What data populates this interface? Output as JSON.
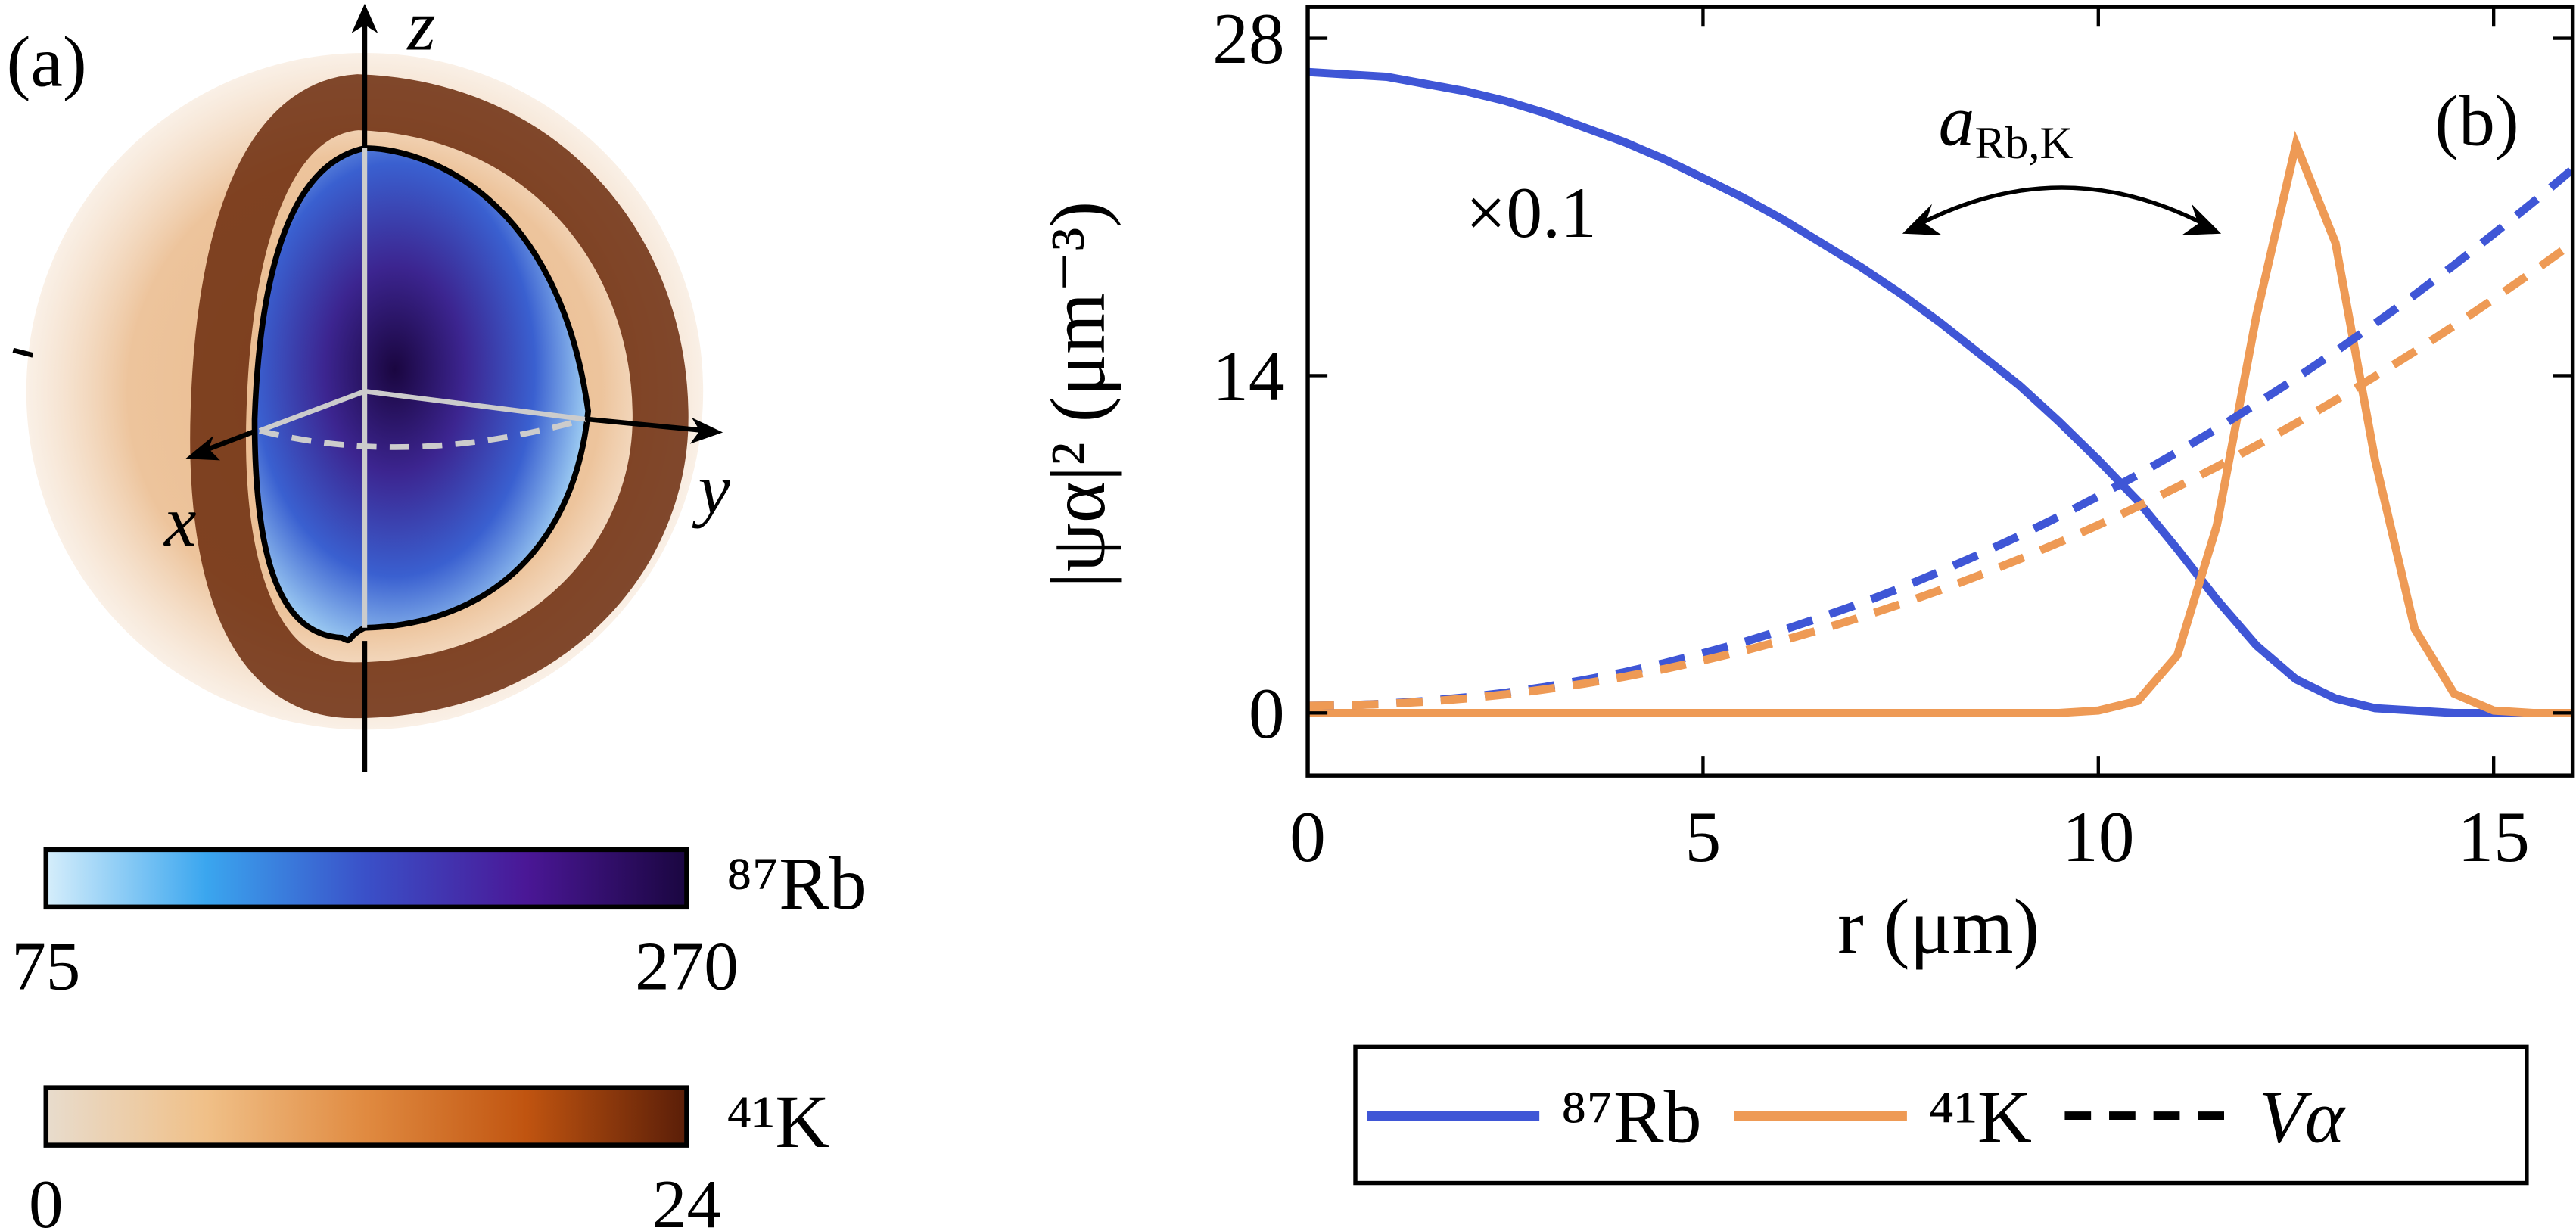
{
  "chart_data": [
    {
      "type": "image",
      "label": "(a)",
      "axis_labels": {
        "x": "x",
        "y": "y",
        "z": "z"
      },
      "colorbars": [
        {
          "label": "⁸⁷Rb",
          "lim": [
            75,
            270
          ],
          "ticks": [
            75,
            270
          ],
          "colors": [
            "#d6eefb",
            "#3aa6ef",
            "#3a50c8",
            "#4a1796",
            "#1a0640"
          ]
        },
        {
          "label": "⁴¹K",
          "lim": [
            0,
            24
          ],
          "ticks": [
            0,
            24
          ],
          "colors": [
            "#e8dccd",
            "#f0c088",
            "#e08a40",
            "#c05410",
            "#5a1e08"
          ]
        }
      ]
    },
    {
      "type": "line",
      "label": "(b)",
      "x_label": "r (μm)",
      "y_label": "|ψα|² (μm⁻³)",
      "annotations": {
        "scale": "×0.1",
        "coupling_main": "a",
        "coupling_sub": "Rb,K"
      },
      "xlim": [
        0,
        16
      ],
      "ylim": [
        -2.6,
        29.3
      ],
      "xticks": [
        0,
        5,
        10,
        15
      ],
      "yticks": [
        0,
        14,
        28
      ],
      "grid": false,
      "potential_label": "Vα",
      "x": [
        0,
        0.5,
        1,
        1.5,
        2,
        2.5,
        3,
        3.5,
        4,
        4.5,
        5,
        5.5,
        6,
        6.5,
        7,
        7.5,
        8,
        8.5,
        9,
        9.5,
        10,
        10.5,
        11,
        11.5,
        12,
        12.5,
        13,
        13.5,
        14,
        14.5,
        15,
        15.5,
        16
      ],
      "series": [
        {
          "name": "⁸⁷Rb",
          "color": "#3f56d6",
          "dashed": false,
          "values": [
            26.6,
            26.5,
            26.4,
            26.1,
            25.8,
            25.4,
            24.9,
            24.3,
            23.7,
            23.0,
            22.2,
            21.4,
            20.5,
            19.5,
            18.5,
            17.4,
            16.2,
            14.9,
            13.6,
            12.1,
            10.5,
            8.8,
            6.8,
            4.7,
            2.8,
            1.4,
            0.6,
            0.2,
            0.1,
            0,
            0,
            0,
            0
          ]
        },
        {
          "name": "⁴¹K",
          "color": "#ee9a55",
          "dashed": false,
          "values": [
            0,
            0,
            0,
            0,
            0,
            0,
            0,
            0,
            0,
            0,
            0,
            0,
            0,
            0,
            0,
            0,
            0,
            0,
            0,
            0,
            0.1,
            0.5,
            2.4,
            7.8,
            16.5,
            23.6,
            19.5,
            10.5,
            3.5,
            0.8,
            0.1,
            0,
            0
          ]
        },
        {
          "color": "#3f56d6",
          "dashed": true,
          "values": [
            0.3,
            0.32,
            0.39,
            0.5,
            0.65,
            0.84,
            1.08,
            1.37,
            1.69,
            2.06,
            2.48,
            2.93,
            3.43,
            3.98,
            4.56,
            5.19,
            5.87,
            6.59,
            7.35,
            8.15,
            9.0,
            9.89,
            10.83,
            11.8,
            12.83,
            13.89,
            15.0,
            16.16,
            17.35,
            18.59,
            19.88,
            21.2,
            22.57
          ]
        },
        {
          "color": "#ee9a55",
          "dashed": true,
          "values": [
            0.3,
            0.32,
            0.38,
            0.47,
            0.6,
            0.77,
            0.98,
            1.22,
            1.5,
            1.82,
            2.18,
            2.57,
            3.0,
            3.47,
            3.98,
            4.52,
            5.1,
            5.72,
            6.38,
            7.07,
            7.8,
            8.57,
            9.38,
            10.22,
            11.1,
            12.02,
            12.98,
            13.97,
            15.0,
            16.07,
            17.18,
            18.32,
            19.5
          ]
        }
      ]
    }
  ]
}
